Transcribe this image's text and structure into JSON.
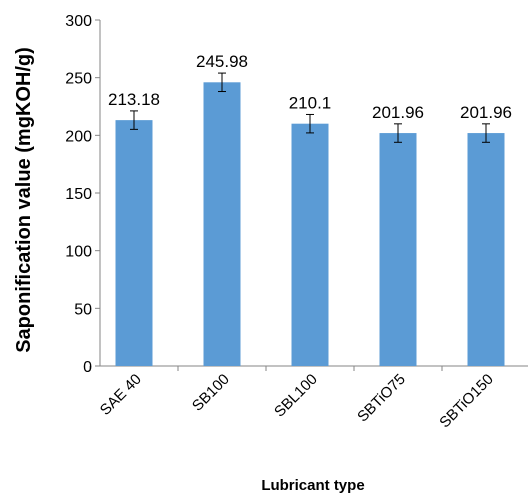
{
  "chart_data": {
    "type": "bar",
    "title": "",
    "xlabel": "Lubricant type",
    "ylabel": "Saponification value (mgKOH/g)",
    "categories": [
      "SAE 40",
      "SB100",
      "SBL100",
      "SBTiO75",
      "SBTiO150"
    ],
    "values": [
      213.18,
      245.98,
      210.1,
      201.96,
      201.96
    ],
    "data_labels": [
      "213.18",
      "245.98",
      "210.1",
      "201.96",
      "201.96"
    ],
    "error": [
      8,
      8,
      8,
      8,
      8
    ],
    "ylim": [
      0,
      300
    ],
    "yticks": [
      0,
      50,
      100,
      150,
      200,
      250,
      300
    ],
    "grid": false,
    "legend": "none",
    "colors": {
      "bar": "#5b9bd5",
      "axis": "#868686",
      "text": "#000000"
    }
  }
}
